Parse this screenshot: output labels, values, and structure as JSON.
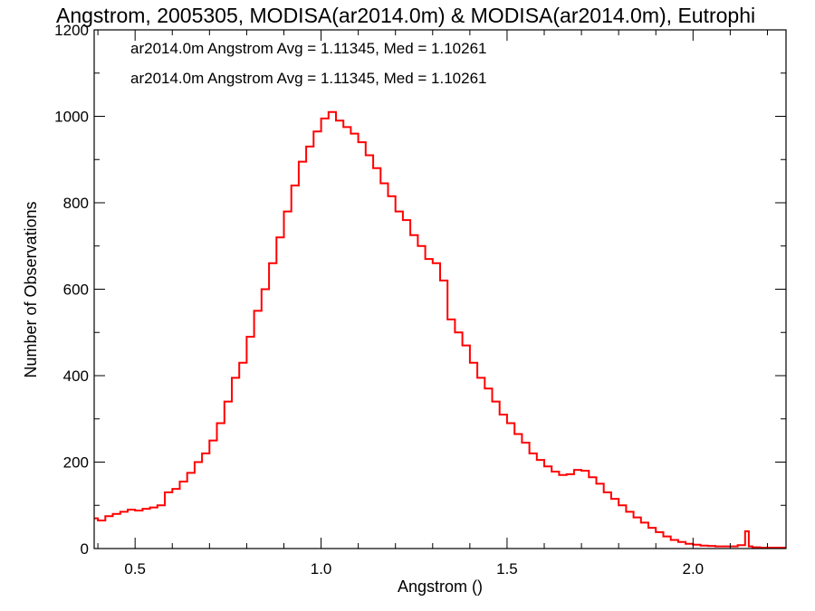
{
  "chart_data": {
    "type": "line",
    "subtype": "histogram-step",
    "title": "Angstrom, 2005305, MODISA(ar2014.0m) & MODISA(ar2014.0m), Eutrophi",
    "xlabel": "Angstrom ()",
    "ylabel": "Number of Observations",
    "xlim": [
      0.39,
      2.25
    ],
    "ylim": [
      0,
      1200
    ],
    "x_ticks": [
      "0.5",
      "1.0",
      "1.5",
      "2.0"
    ],
    "x_tick_values": [
      0.5,
      1.0,
      1.5,
      2.0
    ],
    "y_ticks": [
      "0",
      "200",
      "400",
      "600",
      "800",
      "1000",
      "1200"
    ],
    "y_tick_values": [
      0,
      200,
      400,
      600,
      800,
      1000,
      1200
    ],
    "grid": false,
    "legend_position": "top-left",
    "legend": [
      {
        "text": "ar2014.0m Angstrom Avg = 1.11345, Med = 1.10261",
        "color": "#000000"
      },
      {
        "text": "ar2014.0m Angstrom Avg = 1.11345, Med = 1.10261",
        "color": "#ff0000"
      }
    ],
    "series": [
      {
        "color": "#ff0000",
        "x": [
          0.39,
          0.4,
          0.42,
          0.44,
          0.46,
          0.48,
          0.5,
          0.52,
          0.54,
          0.56,
          0.58,
          0.6,
          0.62,
          0.64,
          0.66,
          0.68,
          0.7,
          0.72,
          0.74,
          0.76,
          0.78,
          0.8,
          0.82,
          0.84,
          0.86,
          0.88,
          0.9,
          0.92,
          0.94,
          0.96,
          0.98,
          1.0,
          1.02,
          1.04,
          1.06,
          1.08,
          1.1,
          1.12,
          1.14,
          1.16,
          1.18,
          1.2,
          1.22,
          1.24,
          1.26,
          1.28,
          1.3,
          1.32,
          1.34,
          1.36,
          1.38,
          1.4,
          1.42,
          1.44,
          1.46,
          1.48,
          1.5,
          1.52,
          1.54,
          1.56,
          1.58,
          1.6,
          1.62,
          1.64,
          1.66,
          1.68,
          1.7,
          1.72,
          1.74,
          1.76,
          1.78,
          1.8,
          1.82,
          1.84,
          1.86,
          1.88,
          1.9,
          1.92,
          1.94,
          1.96,
          1.98,
          2.0,
          2.02,
          2.04,
          2.06,
          2.08,
          2.1,
          2.12,
          2.14,
          2.15,
          2.16,
          2.18,
          2.2,
          2.22,
          2.25
        ],
        "values": [
          70,
          65,
          75,
          80,
          85,
          90,
          88,
          92,
          95,
          100,
          130,
          138,
          155,
          175,
          200,
          220,
          250,
          290,
          340,
          395,
          430,
          490,
          550,
          600,
          660,
          720,
          780,
          840,
          895,
          930,
          965,
          995,
          1010,
          990,
          975,
          960,
          940,
          910,
          880,
          845,
          815,
          780,
          760,
          725,
          700,
          670,
          660,
          620,
          530,
          500,
          470,
          430,
          395,
          370,
          340,
          310,
          290,
          265,
          245,
          220,
          205,
          190,
          178,
          170,
          172,
          182,
          180,
          165,
          150,
          130,
          115,
          100,
          85,
          72,
          60,
          48,
          38,
          28,
          20,
          15,
          11,
          9,
          7,
          6,
          5,
          5,
          5,
          8,
          40,
          5,
          3,
          2,
          2,
          2,
          2
        ]
      }
    ]
  }
}
